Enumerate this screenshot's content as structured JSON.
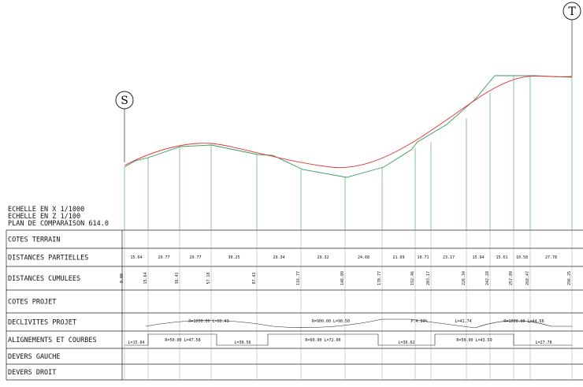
{
  "markers": {
    "start": "S",
    "end": "T"
  },
  "header": [
    "ECHELLE EN X  1/1000",
    "ECHELLE EN Z  1/100",
    "PLAN DE COMPARAISON  614.0"
  ],
  "table": {
    "rows": [
      "COTES TERRAIN",
      "DISTANCES PARTIELLES",
      "DISTANCES CUMULEES",
      "COTES PROJET",
      "DECLIVITES PROJET",
      "ALIGNEMENTS ET COURBES",
      "DEVERS GAUCHE",
      "DEVERS DROIT"
    ]
  },
  "partial_distances": [
    "15.64",
    "20.77",
    "20.77",
    "30.25",
    "29.34",
    "29.32",
    "24.68",
    "21.69",
    "10.71",
    "23.17",
    "15.94",
    "15.61",
    "10.58",
    "27.78"
  ],
  "cumulative_distances": [
    "0.00",
    "15.64",
    "36.41",
    "57.18",
    "87.43",
    "116.77",
    "146.09",
    "170.77",
    "192.46",
    "203.17",
    "226.34",
    "242.28",
    "257.89",
    "268.47",
    "296.25"
  ],
  "declivities": [
    "R=1000.00 L=60.43",
    "R=900.00 L=90.50",
    "P:4.00%",
    "L=41.74",
    "R=1000.00 L=44.66"
  ],
  "alignments": [
    "L=15.64",
    "R=50.00 L=47.58",
    "L=30.56",
    "R=60.00 L=72.06",
    "L=36.62",
    "R=50.00 L=43.59",
    "L=27.78"
  ]
}
